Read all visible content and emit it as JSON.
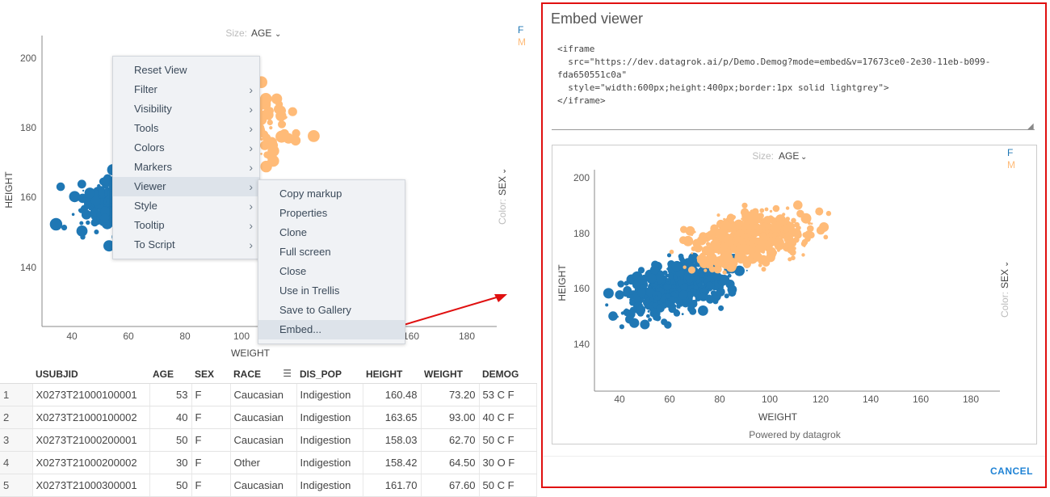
{
  "scatter": {
    "size_label": "Size:",
    "size_value": "AGE",
    "color_label": "Color:",
    "color_value": "SEX",
    "legend": [
      "F",
      "M"
    ],
    "colors": {
      "F": "#1f77b4",
      "M": "#ffbb78"
    },
    "xlabel": "WEIGHT",
    "ylabel": "HEIGHT",
    "x_ticks": [
      "40",
      "60",
      "80",
      "100",
      "120",
      "140",
      "160",
      "180"
    ],
    "y_ticks": [
      "200",
      "180",
      "160",
      "140"
    ]
  },
  "context_menu": {
    "items": [
      {
        "label": "Reset View",
        "submenu": false
      },
      {
        "label": "Filter",
        "submenu": true
      },
      {
        "label": "Visibility",
        "submenu": true
      },
      {
        "label": "Tools",
        "submenu": true
      },
      {
        "label": "Colors",
        "submenu": true
      },
      {
        "label": "Markers",
        "submenu": true
      },
      {
        "label": "Viewer",
        "submenu": true
      },
      {
        "label": "Style",
        "submenu": true
      },
      {
        "label": "Tooltip",
        "submenu": true
      },
      {
        "label": "To Script",
        "submenu": true
      }
    ],
    "viewer_submenu": [
      "Copy markup",
      "Properties",
      "Clone",
      "Full screen",
      "Close",
      "Use in Trellis",
      "Save to Gallery",
      "Embed..."
    ]
  },
  "grid": {
    "columns": [
      "",
      "USUBJID",
      "AGE",
      "SEX",
      "RACE",
      "DIS_POP",
      "HEIGHT",
      "WEIGHT",
      "DEMOG"
    ],
    "rows": [
      [
        "1",
        "X0273T21000100001",
        "53",
        "F",
        "Caucasian",
        "Indigestion",
        "160.48",
        "73.20",
        "53 C F"
      ],
      [
        "2",
        "X0273T21000100002",
        "40",
        "F",
        "Caucasian",
        "Indigestion",
        "163.65",
        "93.00",
        "40 C F"
      ],
      [
        "3",
        "X0273T21000200001",
        "50",
        "F",
        "Caucasian",
        "Indigestion",
        "158.03",
        "62.70",
        "50 C F"
      ],
      [
        "4",
        "X0273T21000200002",
        "30",
        "F",
        "Other",
        "Indigestion",
        "158.42",
        "64.50",
        "30 O F"
      ],
      [
        "5",
        "X0273T21000300001",
        "50",
        "F",
        "Caucasian",
        "Indigestion",
        "161.70",
        "67.60",
        "50 C F"
      ]
    ]
  },
  "dialog": {
    "title": "Embed viewer",
    "code": "<iframe\n  src=\"https://dev.datagrok.ai/p/Demo.Demog?mode=embed&v=17673ce0-2e30-11eb-b099-\nfda650551c0a\"\n  style=\"width:600px;height:400px;border:1px solid lightgrey\">\n</iframe>",
    "powered_by": "Powered by datagrok",
    "cancel_label": "CANCEL"
  }
}
